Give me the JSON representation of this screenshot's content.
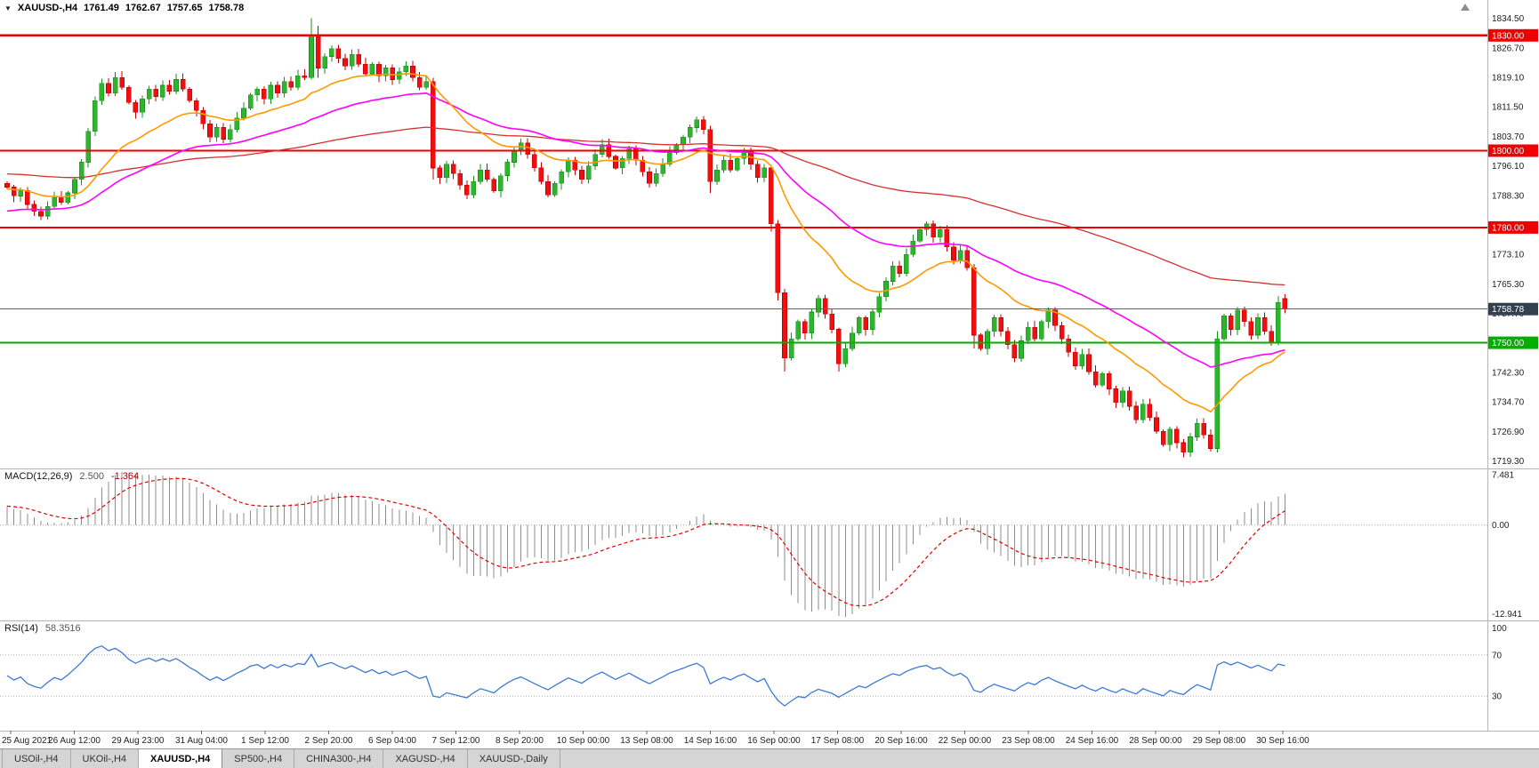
{
  "quote": {
    "marker": "▼",
    "symbol": "XAUUSD-,H4",
    "open": "1761.49",
    "high": "1762.67",
    "low": "1757.65",
    "close": "1758.78"
  },
  "chart_data": {
    "type": "candlestick",
    "symbol": "XAUUSD-",
    "timeframe": "H4",
    "price_axis": {
      "max": 1839.2,
      "min": 1717.3,
      "values": [
        "1834.50",
        "1826.70",
        "1819.10",
        "1811.50",
        "1803.70",
        "1796.10",
        "1788.30",
        "1773.10",
        "1765.30",
        "1757.70",
        "1742.30",
        "1734.70",
        "1726.90",
        "1719.30"
      ]
    },
    "closes": [
      1790.5,
      1788.2,
      1789.6,
      1786.0,
      1784.2,
      1783.0,
      1785.5,
      1787.8,
      1786.5,
      1789.0,
      1792.5,
      1797.0,
      1805.0,
      1813.0,
      1817.5,
      1815.0,
      1819.0,
      1816.5,
      1812.5,
      1810.0,
      1813.5,
      1816.0,
      1814.0,
      1817.0,
      1815.5,
      1818.5,
      1816.0,
      1813.0,
      1810.5,
      1807.0,
      1803.5,
      1806.0,
      1803.0,
      1805.5,
      1808.5,
      1811.0,
      1814.5,
      1816.0,
      1813.5,
      1817.0,
      1815.0,
      1818.0,
      1816.5,
      1819.5,
      1819.0,
      1830.0,
      1821.5,
      1824.5,
      1826.5,
      1824.0,
      1822.0,
      1825.0,
      1822.5,
      1820.0,
      1822.5,
      1819.5,
      1821.5,
      1818.5,
      1820.5,
      1822.0,
      1819.0,
      1816.5,
      1818.0,
      1795.5,
      1793.0,
      1796.5,
      1794.0,
      1791.0,
      1788.5,
      1792.0,
      1795.0,
      1792.5,
      1789.5,
      1793.5,
      1797.0,
      1800.0,
      1802.0,
      1799.0,
      1795.5,
      1792.0,
      1788.5,
      1791.5,
      1794.5,
      1797.5,
      1795.0,
      1792.5,
      1796.0,
      1799.0,
      1801.5,
      1798.5,
      1795.5,
      1798.0,
      1800.5,
      1797.5,
      1794.5,
      1791.5,
      1794.0,
      1796.5,
      1799.5,
      1801.5,
      1803.5,
      1806.0,
      1808.0,
      1805.5,
      1792.0,
      1795.0,
      1797.5,
      1795.0,
      1798.0,
      1800.0,
      1796.5,
      1793.0,
      1795.5,
      1781.0,
      1763.0,
      1746.0,
      1751.0,
      1755.5,
      1752.5,
      1758.0,
      1761.5,
      1757.5,
      1753.5,
      1744.5,
      1748.5,
      1752.5,
      1756.5,
      1753.5,
      1758.0,
      1762.0,
      1766.0,
      1770.0,
      1768.0,
      1773.0,
      1776.5,
      1779.5,
      1781.0,
      1777.5,
      1779.5,
      1775.0,
      1771.5,
      1774.0,
      1769.5,
      1752.0,
      1748.5,
      1753.0,
      1756.5,
      1753.0,
      1749.5,
      1746.0,
      1750.5,
      1754.0,
      1751.0,
      1755.5,
      1758.5,
      1754.5,
      1751.0,
      1747.5,
      1744.0,
      1747.0,
      1742.5,
      1739.0,
      1742.0,
      1738.0,
      1734.5,
      1737.5,
      1733.5,
      1730.0,
      1734.0,
      1730.5,
      1727.0,
      1723.5,
      1727.5,
      1724.0,
      1721.5,
      1725.5,
      1729.0,
      1726.0,
      1722.5,
      1751.0,
      1757.0,
      1753.5,
      1758.5,
      1755.5,
      1752.0,
      1756.5,
      1753.0,
      1750.0,
      1760.5,
      1758.78
    ],
    "candle_overrides": {
      "45": [
        1819.0,
        1834.5,
        1818.5,
        1830.0
      ],
      "46": [
        1830.0,
        1832.5,
        1819.0,
        1821.5
      ],
      "63": [
        1818.0,
        1819.0,
        1792.5,
        1795.5
      ],
      "104": [
        1805.5,
        1806.5,
        1789.0,
        1792.0
      ],
      "113": [
        1795.5,
        1796.0,
        1779.0,
        1781.0
      ],
      "114": [
        1781.0,
        1782.0,
        1761.0,
        1763.0
      ],
      "115": [
        1763.0,
        1764.0,
        1742.5,
        1746.0
      ],
      "123": [
        1753.5,
        1754.0,
        1742.5,
        1744.5
      ],
      "143": [
        1769.5,
        1770.5,
        1748.5,
        1752.0
      ],
      "179": [
        1722.5,
        1753.0,
        1721.5,
        1751.0
      ],
      "189": [
        1761.49,
        1762.67,
        1757.65,
        1758.78
      ]
    },
    "hlines": [
      {
        "price": 1830.0,
        "label": "1830.00",
        "color": "#ee0000"
      },
      {
        "price": 1800.0,
        "label": "1800.00",
        "color": "#ee0000"
      },
      {
        "price": 1780.0,
        "label": "1780.00",
        "color": "#ee0000"
      },
      {
        "price": 1750.0,
        "label": "1750.00",
        "color": "#00ae00"
      }
    ],
    "current_price": {
      "price": 1758.78,
      "label": "1758.78",
      "line_color": "#4a6785",
      "badge_bg": "#33414f"
    },
    "moving_averages": [
      {
        "name": "slow-red",
        "period": 130,
        "seed_offset": 3.5,
        "color": "#d43030",
        "width": 1.3
      },
      {
        "name": "mid-magenta",
        "period": 45,
        "seed_offset": -6.5,
        "color": "#ff00ff",
        "width": 1.6
      },
      {
        "name": "fast-orange",
        "period": 20,
        "seed_offset": -0.5,
        "color": "#ff9900",
        "width": 1.6
      }
    ],
    "time_axis": {
      "labels": [
        "25 Aug 2021",
        "26 Aug 12:00",
        "29 Aug 23:00",
        "31 Aug 04:00",
        "1 Sep 12:00",
        "2 Sep 20:00",
        "6 Sep 04:00",
        "7 Sep 12:00",
        "8 Sep 20:00",
        "10 Sep 00:00",
        "13 Sep 08:00",
        "14 Sep 16:00",
        "16 Sep 00:00",
        "17 Sep 08:00",
        "20 Sep 16:00",
        "22 Sep 00:00",
        "23 Sep 08:00",
        "24 Sep 16:00",
        "28 Sep 00:00",
        "29 Sep 08:00",
        "30 Sep 16:00"
      ]
    }
  },
  "macd": {
    "name": "MACD(12,26,9)",
    "values_text_main": "2.500",
    "values_text_signal": "-1.364",
    "axis_labels": [
      "7.481",
      "0.00",
      "-12.941"
    ],
    "axis_max": 7.481,
    "axis_min": -12.941,
    "hist_color": "#8c8c8c",
    "signal_color": "#e00000"
  },
  "rsi": {
    "name": "RSI(14)",
    "value_text": "58.3516",
    "levels": [
      70,
      30
    ],
    "axis_labels": [
      "100",
      "70",
      "30"
    ],
    "line_color": "#3d79d8"
  },
  "colors": {
    "up_fill": "#2db52d",
    "up_stroke": "#1d8f1d",
    "down_fill": "#ee1010",
    "down_stroke": "#c00000",
    "pane_border": "#b5b5b5",
    "grid_text": "#1c1c1c",
    "axis_text": "#222222"
  },
  "tabs": {
    "active_index": 2,
    "items": [
      "USOil-,H4",
      "UKOil-,H4",
      "XAUUSD-,H4",
      "SP500-,H4",
      "CHINA300-,H4",
      "XAGUSD-,H4",
      "XAUUSD-,Daily"
    ]
  }
}
